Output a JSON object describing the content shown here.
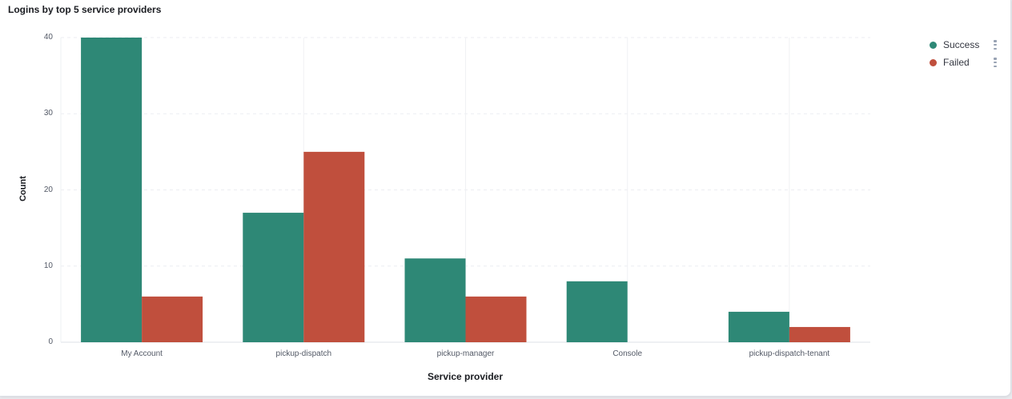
{
  "panel": {
    "title": "Logins by top 5 service providers"
  },
  "chart_data": {
    "type": "bar",
    "title": "Logins by top 5 service providers",
    "xlabel": "Service provider",
    "ylabel": "Count",
    "ylim": [
      0,
      40
    ],
    "yticks": [
      "0",
      "10",
      "20",
      "30",
      "40"
    ],
    "categories": [
      "My Account",
      "pickup-dispatch",
      "pickup-manager",
      "Console",
      "pickup-dispatch-tenant"
    ],
    "series": [
      {
        "name": "Success",
        "color": "#2e8876",
        "values": [
          40,
          17,
          11,
          8,
          4
        ]
      },
      {
        "name": "Failed",
        "color": "#c04f3d",
        "values": [
          6,
          25,
          6,
          0,
          2
        ]
      }
    ],
    "grid": true,
    "legend_position": "right"
  },
  "legend": {
    "items": [
      {
        "label": "Success",
        "color": "#2e8876"
      },
      {
        "label": "Failed",
        "color": "#c04f3d"
      }
    ]
  }
}
